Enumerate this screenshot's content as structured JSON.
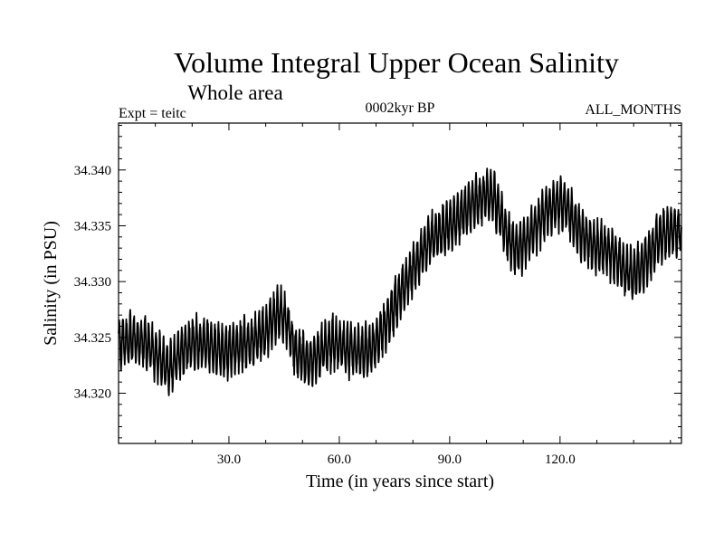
{
  "chart_data": {
    "type": "line",
    "title": "Volume Integral Upper Ocean Salinity",
    "subtitle": "Whole area",
    "left_label": "Expt = teitc",
    "center_label": "0002kyr BP",
    "right_label": "ALL_MONTHS",
    "xlabel": "Time (in years since start)",
    "ylabel": "Salinity (in PSU)",
    "xlim": [
      0,
      153
    ],
    "ylim": [
      34.3155,
      34.3442
    ],
    "x_ticks": [
      {
        "value": 30,
        "label": "30.0"
      },
      {
        "value": 60,
        "label": "60.0"
      },
      {
        "value": 90,
        "label": "90.0"
      },
      {
        "value": 120,
        "label": "120.0"
      }
    ],
    "y_ticks": [
      {
        "value": 34.32,
        "label": "34.320"
      },
      {
        "value": 34.325,
        "label": "34.325"
      },
      {
        "value": 34.33,
        "label": "34.330"
      },
      {
        "value": 34.335,
        "label": "34.335"
      },
      {
        "value": 34.34,
        "label": "34.340"
      }
    ],
    "annual_cycle_amplitude": 0.0021,
    "series": [
      {
        "name": "Salinity",
        "x": [
          0,
          5,
          8,
          12,
          14,
          17,
          20,
          25,
          28,
          32,
          36,
          40,
          42,
          44,
          46,
          48,
          50,
          52,
          55,
          58,
          60,
          64,
          67,
          70,
          73,
          76,
          79,
          82,
          85,
          88,
          91,
          94,
          96,
          98,
          100,
          102,
          104,
          106,
          108,
          110,
          112,
          114,
          116,
          118,
          120,
          122,
          124,
          127,
          130,
          133,
          136,
          138,
          140,
          142,
          144,
          146,
          148,
          150,
          152,
          153
        ],
        "y": [
          34.3245,
          34.3248,
          34.3243,
          34.3227,
          34.3222,
          34.3238,
          34.3245,
          34.3243,
          34.3237,
          34.324,
          34.3246,
          34.3255,
          34.3268,
          34.3272,
          34.3262,
          34.3238,
          34.3232,
          34.3228,
          34.3238,
          34.3245,
          34.3243,
          34.3238,
          34.3236,
          34.3245,
          34.3265,
          34.3285,
          34.3305,
          34.3322,
          34.3338,
          34.3345,
          34.3352,
          34.3362,
          34.3368,
          34.3374,
          34.3378,
          34.3375,
          34.3358,
          34.3338,
          34.3328,
          34.3332,
          34.3342,
          34.3352,
          34.3362,
          34.3368,
          34.337,
          34.3365,
          34.3352,
          34.3338,
          34.333,
          34.3328,
          34.3318,
          34.3308,
          34.3306,
          34.3312,
          34.3322,
          34.3333,
          34.3342,
          34.3345,
          34.3347,
          34.3345
        ]
      }
    ]
  }
}
